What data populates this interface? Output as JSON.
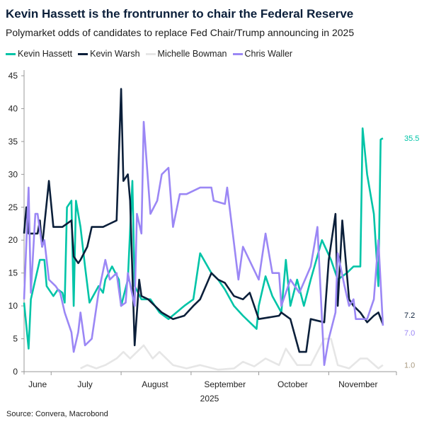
{
  "header": {
    "title": "Kevin Hassett is the frontrunner to chair the Federal Reserve",
    "subtitle": "Polymarket odds of candidates to replace Fed Chair/Trump announcing in 2025"
  },
  "source": "Source: Convera, Macrobond",
  "chart_data": {
    "type": "line",
    "title": "Kevin Hassett is the frontrunner to chair the Federal Reserve",
    "subtitle": "Polymarket odds of candidates to replace Fed Chair/Trump announcing in 2025",
    "xlabel": "2025",
    "ylabel": "",
    "xlim": [
      "2025-06-19",
      "2025-12-01"
    ],
    "ylim": [
      0,
      45
    ],
    "yticks": [
      0,
      5,
      10,
      15,
      20,
      25,
      30,
      35,
      40,
      45
    ],
    "xticks": [
      {
        "date": "2025-07-01"
      },
      {
        "date": "2025-08-01"
      },
      {
        "date": "2025-09-01"
      },
      {
        "date": "2025-10-01"
      },
      {
        "date": "2025-11-01"
      },
      {
        "date": "2025-12-01"
      }
    ],
    "xtick_labels": [
      {
        "label": "June",
        "date": "2025-06-25"
      },
      {
        "label": "July",
        "date": "2025-07-16"
      },
      {
        "label": "August",
        "date": "2025-08-16"
      },
      {
        "label": "September",
        "date": "2025-09-16"
      },
      {
        "label": "October",
        "date": "2025-10-16"
      },
      {
        "label": "November",
        "date": "2025-11-14"
      }
    ],
    "grid": false,
    "legend": "top-left",
    "series": [
      {
        "name": "Kevin Hassett",
        "color": "#00c4a7",
        "end_label": "35.5",
        "end_label_color": "#00c4a7",
        "points": [
          [
            "2025-06-19",
            10.5
          ],
          [
            "2025-06-21",
            3.5
          ],
          [
            "2025-06-22",
            11
          ],
          [
            "2025-06-24",
            14
          ],
          [
            "2025-06-26",
            17
          ],
          [
            "2025-06-28",
            17
          ],
          [
            "2025-06-29",
            13
          ],
          [
            "2025-07-02",
            11.5
          ],
          [
            "2025-07-04",
            12.5
          ],
          [
            "2025-07-06",
            12
          ],
          [
            "2025-07-07",
            10.5
          ],
          [
            "2025-07-08",
            25
          ],
          [
            "2025-07-10",
            26
          ],
          [
            "2025-07-11",
            10
          ],
          [
            "2025-07-12",
            26
          ],
          [
            "2025-07-14",
            22
          ],
          [
            "2025-07-16",
            16
          ],
          [
            "2025-07-18",
            10.5
          ],
          [
            "2025-07-22",
            13
          ],
          [
            "2025-07-24",
            12
          ],
          [
            "2025-07-25",
            14
          ],
          [
            "2025-07-28",
            16
          ],
          [
            "2025-07-31",
            14
          ],
          [
            "2025-08-01",
            10
          ],
          [
            "2025-08-04",
            14
          ],
          [
            "2025-08-06",
            29
          ],
          [
            "2025-08-07",
            13
          ],
          [
            "2025-08-10",
            11
          ],
          [
            "2025-08-14",
            11
          ],
          [
            "2025-08-18",
            9
          ],
          [
            "2025-08-22",
            8
          ],
          [
            "2025-08-29",
            10
          ],
          [
            "2025-09-02",
            11
          ],
          [
            "2025-09-05",
            18
          ],
          [
            "2025-09-10",
            15
          ],
          [
            "2025-09-13",
            14
          ],
          [
            "2025-09-16",
            12.5
          ],
          [
            "2025-09-20",
            10
          ],
          [
            "2025-09-24",
            8.5
          ],
          [
            "2025-09-30",
            6.5
          ],
          [
            "2025-10-01",
            10
          ],
          [
            "2025-10-04",
            14.5
          ],
          [
            "2025-10-07",
            11.5
          ],
          [
            "2025-10-11",
            9
          ],
          [
            "2025-10-13",
            17
          ],
          [
            "2025-10-15",
            10
          ],
          [
            "2025-10-18",
            14
          ],
          [
            "2025-10-21",
            10
          ],
          [
            "2025-10-24",
            14
          ],
          [
            "2025-10-29",
            20
          ],
          [
            "2025-11-02",
            17
          ],
          [
            "2025-11-05",
            14
          ],
          [
            "2025-11-09",
            15
          ],
          [
            "2025-11-12",
            16
          ],
          [
            "2025-11-15",
            16
          ],
          [
            "2025-11-16",
            37
          ],
          [
            "2025-11-18",
            30
          ],
          [
            "2025-11-21",
            24
          ],
          [
            "2025-11-23",
            13
          ],
          [
            "2025-11-24",
            35.3
          ],
          [
            "2025-11-25",
            35.5
          ]
        ]
      },
      {
        "name": "Kevin Warsh",
        "color": "#0b1f3a",
        "end_label": "7.2",
        "end_label_color": "#0b1f3a",
        "points": [
          [
            "2025-06-19",
            21
          ],
          [
            "2025-06-20",
            25
          ],
          [
            "2025-06-21",
            21
          ],
          [
            "2025-06-25",
            21
          ],
          [
            "2025-06-26",
            23
          ],
          [
            "2025-06-27",
            19
          ],
          [
            "2025-06-30",
            29
          ],
          [
            "2025-07-02",
            22
          ],
          [
            "2025-07-06",
            22
          ],
          [
            "2025-07-10",
            23
          ],
          [
            "2025-07-11",
            17.5
          ],
          [
            "2025-07-13",
            16.5
          ],
          [
            "2025-07-14",
            17
          ],
          [
            "2025-07-17",
            19
          ],
          [
            "2025-07-19",
            22
          ],
          [
            "2025-07-24",
            22
          ],
          [
            "2025-07-27",
            22.5
          ],
          [
            "2025-07-30",
            23
          ],
          [
            "2025-08-01",
            43
          ],
          [
            "2025-08-02",
            29
          ],
          [
            "2025-08-04",
            30
          ],
          [
            "2025-08-05",
            26
          ],
          [
            "2025-08-07",
            4
          ],
          [
            "2025-08-09",
            14
          ],
          [
            "2025-08-10",
            11.5
          ],
          [
            "2025-08-13",
            11
          ],
          [
            "2025-08-19",
            9
          ],
          [
            "2025-08-24",
            8
          ],
          [
            "2025-08-29",
            8.5
          ],
          [
            "2025-09-02",
            10
          ],
          [
            "2025-09-05",
            11
          ],
          [
            "2025-09-10",
            15
          ],
          [
            "2025-09-13",
            14
          ],
          [
            "2025-09-16",
            13.5
          ],
          [
            "2025-09-20",
            11.5
          ],
          [
            "2025-09-24",
            11
          ],
          [
            "2025-09-27",
            12
          ],
          [
            "2025-10-01",
            8
          ],
          [
            "2025-10-10",
            8.5
          ],
          [
            "2025-10-11",
            9
          ],
          [
            "2025-10-15",
            8
          ],
          [
            "2025-10-19",
            3
          ],
          [
            "2025-10-22",
            3
          ],
          [
            "2025-10-24",
            8
          ],
          [
            "2025-10-30",
            7.5
          ],
          [
            "2025-11-01",
            17
          ],
          [
            "2025-11-04",
            24
          ],
          [
            "2025-11-05",
            10
          ],
          [
            "2025-11-07",
            23
          ],
          [
            "2025-11-10",
            11
          ],
          [
            "2025-11-12",
            10
          ],
          [
            "2025-11-15",
            9
          ],
          [
            "2025-11-18",
            7.5
          ],
          [
            "2025-11-21",
            8.5
          ],
          [
            "2025-11-23",
            9
          ],
          [
            "2025-11-25",
            7.2
          ]
        ]
      },
      {
        "name": "Michelle Bowman",
        "color": "#e6e6e6",
        "end_label": "1.0",
        "end_label_color": "#a89a80",
        "points": [
          [
            "2025-07-14",
            0.5
          ],
          [
            "2025-07-17",
            1
          ],
          [
            "2025-07-21",
            0.5
          ],
          [
            "2025-07-25",
            1
          ],
          [
            "2025-07-30",
            2
          ],
          [
            "2025-08-02",
            3
          ],
          [
            "2025-08-05",
            2
          ],
          [
            "2025-08-11",
            4
          ],
          [
            "2025-08-15",
            2
          ],
          [
            "2025-08-18",
            3
          ],
          [
            "2025-08-24",
            1
          ],
          [
            "2025-08-30",
            0.5
          ],
          [
            "2025-09-05",
            1
          ],
          [
            "2025-09-13",
            0.3
          ],
          [
            "2025-09-20",
            0.5
          ],
          [
            "2025-09-24",
            1.5
          ],
          [
            "2025-09-29",
            0.8
          ],
          [
            "2025-10-04",
            2
          ],
          [
            "2025-10-10",
            1
          ],
          [
            "2025-10-13",
            3.5
          ],
          [
            "2025-10-18",
            1
          ],
          [
            "2025-10-24",
            1
          ],
          [
            "2025-10-30",
            5
          ],
          [
            "2025-11-02",
            5
          ],
          [
            "2025-11-05",
            1
          ],
          [
            "2025-11-10",
            0.5
          ],
          [
            "2025-11-15",
            2
          ],
          [
            "2025-11-18",
            2
          ],
          [
            "2025-11-23",
            0.5
          ],
          [
            "2025-11-25",
            1.0
          ]
        ]
      },
      {
        "name": "Chris Waller",
        "color": "#9b87f5",
        "end_label": "7.0",
        "end_label_color": "#9b87f5",
        "points": [
          [
            "2025-06-19",
            11
          ],
          [
            "2025-06-21",
            28
          ],
          [
            "2025-06-22",
            12
          ],
          [
            "2025-06-24",
            24
          ],
          [
            "2025-06-25",
            24
          ],
          [
            "2025-06-27",
            19
          ],
          [
            "2025-06-28",
            20
          ],
          [
            "2025-06-30",
            14
          ],
          [
            "2025-07-03",
            13
          ],
          [
            "2025-07-05",
            12
          ],
          [
            "2025-07-07",
            9
          ],
          [
            "2025-07-10",
            6
          ],
          [
            "2025-07-11",
            3
          ],
          [
            "2025-07-13",
            6
          ],
          [
            "2025-07-14",
            9
          ],
          [
            "2025-07-16",
            4
          ],
          [
            "2025-07-19",
            5
          ],
          [
            "2025-07-22",
            12
          ],
          [
            "2025-07-25",
            17
          ],
          [
            "2025-07-27",
            14
          ],
          [
            "2025-07-30",
            15
          ],
          [
            "2025-08-01",
            10
          ],
          [
            "2025-08-03",
            10.5
          ],
          [
            "2025-08-04",
            15
          ],
          [
            "2025-08-07",
            10
          ],
          [
            "2025-08-08",
            24
          ],
          [
            "2025-08-10",
            21
          ],
          [
            "2025-08-11",
            38
          ],
          [
            "2025-08-14",
            24
          ],
          [
            "2025-08-17",
            26
          ],
          [
            "2025-08-19",
            30
          ],
          [
            "2025-08-22",
            31
          ],
          [
            "2025-08-24",
            22
          ],
          [
            "2025-08-27",
            27
          ],
          [
            "2025-08-30",
            27
          ],
          [
            "2025-09-05",
            28
          ],
          [
            "2025-09-10",
            28
          ],
          [
            "2025-09-11",
            26
          ],
          [
            "2025-09-16",
            25.5
          ],
          [
            "2025-09-17",
            28
          ],
          [
            "2025-09-22",
            14
          ],
          [
            "2025-09-24",
            19
          ],
          [
            "2025-10-01",
            14
          ],
          [
            "2025-10-04",
            21
          ],
          [
            "2025-10-07",
            15
          ],
          [
            "2025-10-10",
            15
          ],
          [
            "2025-10-11",
            10
          ],
          [
            "2025-10-15",
            14
          ],
          [
            "2025-10-19",
            12
          ],
          [
            "2025-10-24",
            16
          ],
          [
            "2025-10-27",
            22
          ],
          [
            "2025-10-30",
            1
          ],
          [
            "2025-11-01",
            5
          ],
          [
            "2025-11-04",
            9
          ],
          [
            "2025-11-05",
            18
          ],
          [
            "2025-11-08",
            13
          ],
          [
            "2025-11-10",
            10
          ],
          [
            "2025-11-12",
            11
          ],
          [
            "2025-11-13",
            8
          ],
          [
            "2025-11-18",
            8
          ],
          [
            "2025-11-21",
            11
          ],
          [
            "2025-11-23",
            20
          ],
          [
            "2025-11-25",
            7.0
          ]
        ]
      }
    ]
  }
}
